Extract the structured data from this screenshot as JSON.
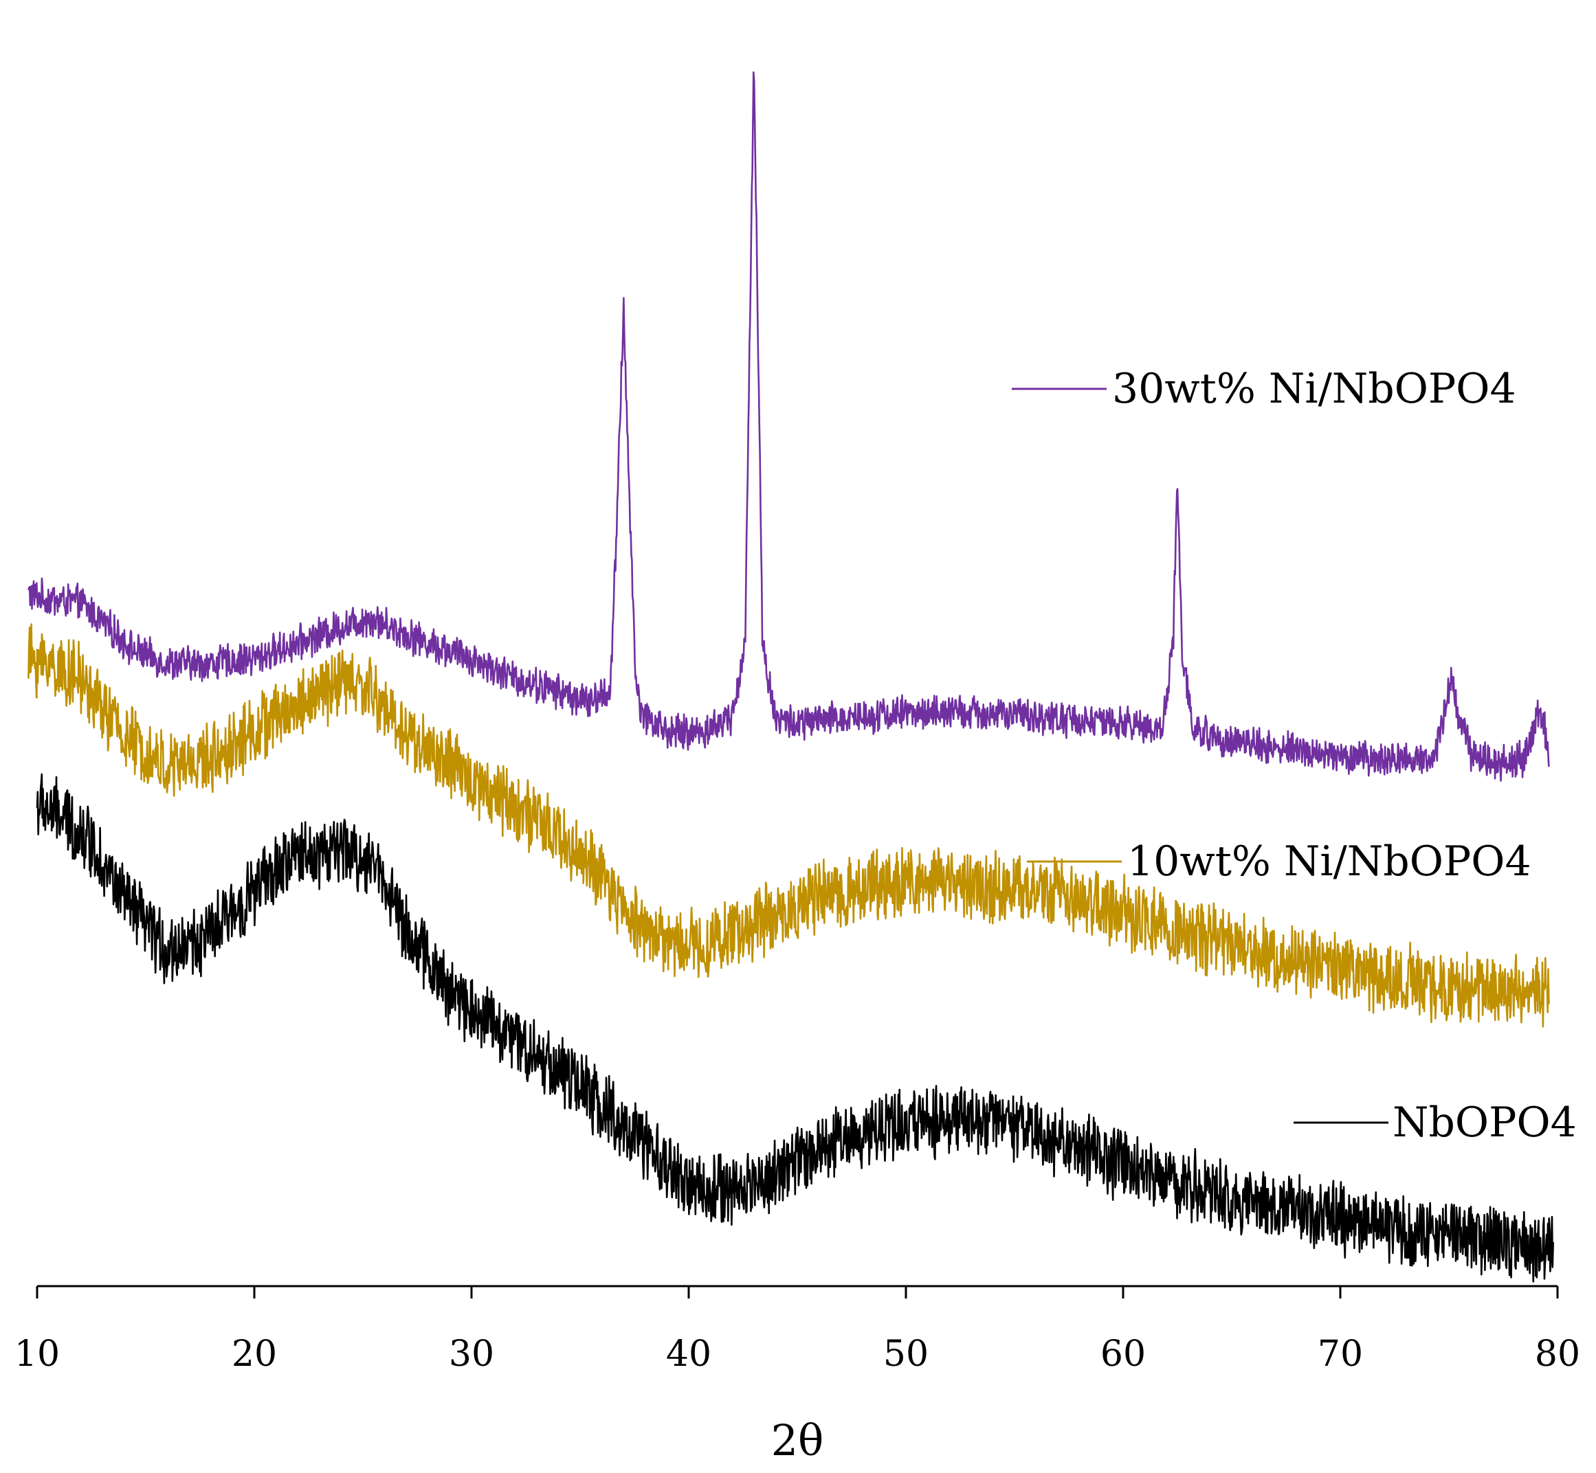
{
  "chart_data": {
    "type": "line",
    "title": "",
    "xlabel": "2θ",
    "ylabel": "",
    "xlim": [
      10,
      80
    ],
    "ylim": [
      0,
      100
    ],
    "xticks": [
      "10",
      "20",
      "30",
      "40",
      "50",
      "60",
      "70",
      "80"
    ],
    "grid": false,
    "legend_placement": "inline-right",
    "series": [
      {
        "name": "30wt% Ni/NbOPO4",
        "color": "#7030a0",
        "noise": 1.2,
        "x": [
          9.6,
          10.5,
          12.0,
          13.0,
          14.5,
          16.0,
          18.0,
          20.0,
          22.0,
          24.0,
          25.3,
          26.5,
          28.0,
          30.0,
          32.0,
          34.0,
          35.5,
          36.4,
          36.7,
          37.0,
          37.3,
          37.6,
          38.0,
          39.0,
          40.0,
          41.0,
          42.0,
          42.6,
          43.0,
          43.4,
          44.0,
          45.0,
          48.0,
          50.0,
          53.0,
          56.0,
          60.0,
          61.8,
          62.3,
          62.5,
          62.7,
          63.2,
          64.0,
          66.0,
          68.0,
          70.0,
          72.0,
          74.3,
          74.8,
          75.1,
          75.4,
          76.0,
          77.0,
          78.5,
          78.9,
          79.2,
          79.6
        ],
        "y": [
          54.1,
          53.7,
          53.4,
          51.9,
          49.6,
          48.6,
          48.6,
          49.0,
          50.2,
          51.5,
          52.2,
          51.3,
          50.2,
          49.0,
          47.4,
          46.4,
          45.5,
          46.6,
          60.0,
          77.0,
          60.0,
          46.0,
          44.5,
          43.2,
          43.1,
          43.4,
          44.5,
          50.0,
          97.1,
          50.0,
          44.3,
          43.8,
          44.5,
          44.7,
          44.7,
          44.4,
          43.8,
          43.5,
          50.0,
          63.4,
          50.0,
          43.4,
          42.9,
          42.2,
          41.7,
          41.2,
          41.0,
          41.1,
          45.0,
          47.5,
          45.0,
          41.5,
          40.8,
          41.0,
          43.5,
          45.2,
          41.7
        ]
      },
      {
        "name": "10wt% Ni/NbOPO4",
        "color": "#bf9000",
        "noise": 2.4,
        "x": [
          9.6,
          10.5,
          12.0,
          14.0,
          16.0,
          18.0,
          20.0,
          22.0,
          24.0,
          25.3,
          27.0,
          29.0,
          32.0,
          35.0,
          37.0,
          39.0,
          41.0,
          43.0,
          46.0,
          49.0,
          51.5,
          54.0,
          57.0,
          60.0,
          63.0,
          66.0,
          70.0,
          74.0,
          77.0,
          79.6
        ],
        "y": [
          48.9,
          48.7,
          47.3,
          42.9,
          40.3,
          41.1,
          43.3,
          45.3,
          47.2,
          46.5,
          43.0,
          40.5,
          37.4,
          33.5,
          29.2,
          26.5,
          26.5,
          28.0,
          30.0,
          31.2,
          31.4,
          31.0,
          30.3,
          28.9,
          27.2,
          25.8,
          24.4,
          23.2,
          22.8,
          22.7
        ]
      },
      {
        "name": "NbOPO4",
        "color": "#000000",
        "noise": 2.4,
        "x": [
          10.0,
          11.0,
          12.5,
          14.0,
          16.0,
          18.0,
          20.0,
          22.0,
          24.0,
          25.7,
          27.0,
          29.0,
          32.0,
          35.0,
          38.0,
          40.0,
          42.0,
          44.0,
          46.0,
          49.0,
          51.5,
          53.5,
          56.0,
          60.0,
          64.0,
          68.0,
          72.0,
          76.0,
          79.8
        ],
        "y": [
          37.4,
          36.6,
          34.5,
          29.9,
          25.8,
          27.1,
          30.7,
          33.5,
          33.8,
          32.6,
          27.5,
          22.6,
          18.9,
          15.2,
          10.3,
          7.1,
          6.9,
          8.1,
          10.4,
          12.0,
          12.5,
          12.5,
          11.4,
          8.9,
          6.8,
          5.4,
          4.0,
          3.2,
          2.4
        ]
      }
    ]
  }
}
